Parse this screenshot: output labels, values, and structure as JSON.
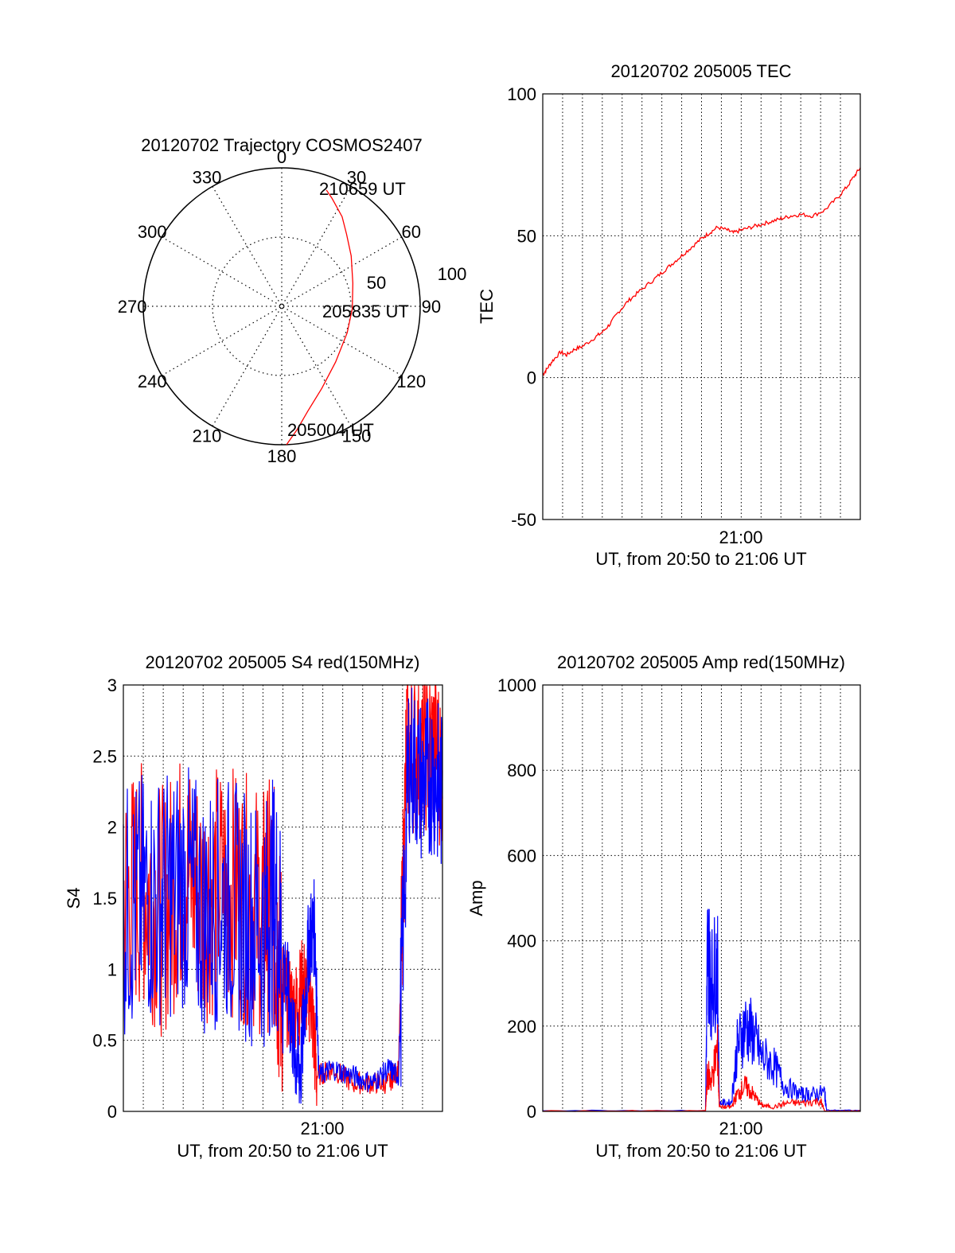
{
  "chart_data": [
    {
      "type": "polar",
      "title": "20120702 Trajectory COSMOS2407",
      "azimuth_labels": [
        "0",
        "30",
        "60",
        "90",
        "120",
        "150",
        "180",
        "210",
        "240",
        "270",
        "300",
        "330"
      ],
      "radial_ticks": [
        50,
        100
      ],
      "radial_max": 100,
      "radial_labels": [
        "50",
        "100"
      ],
      "annotations": {
        "start": "205004 UT",
        "mid": "205835 UT",
        "end": "210659 UT"
      },
      "colors": {
        "trajectory": "#ff0000",
        "axis": "#000000"
      },
      "trajectory": [
        {
          "r": 100,
          "az": 178
        },
        {
          "r": 90,
          "az": 173
        },
        {
          "r": 78,
          "az": 166
        },
        {
          "r": 66,
          "az": 154
        },
        {
          "r": 56,
          "az": 136
        },
        {
          "r": 51,
          "az": 112
        },
        {
          "r": 51,
          "az": 92
        },
        {
          "r": 54,
          "az": 72
        },
        {
          "r": 62,
          "az": 54
        },
        {
          "r": 70,
          "az": 42
        },
        {
          "r": 78,
          "az": 34
        },
        {
          "r": 86,
          "az": 25
        },
        {
          "r": 90,
          "az": 21
        }
      ]
    },
    {
      "type": "line",
      "title": "20120702 205005 TEC",
      "ylabel": "TEC",
      "xlabel": "UT, from 20:50 to 21:06 UT",
      "xlim": [
        0,
        16
      ],
      "ylim": [
        -50,
        100
      ],
      "x_tick_label": "21:00",
      "y_ticks": [
        "100",
        "50",
        "0",
        "-50"
      ],
      "grid": true,
      "colors": {
        "series": "#ff0000"
      },
      "series": [
        {
          "values": [
            [
              0,
              1
            ],
            [
              0.2,
              3
            ],
            [
              0.5,
              6
            ],
            [
              0.9,
              9
            ],
            [
              1.2,
              8
            ],
            [
              1.6,
              10
            ],
            [
              2.0,
              11
            ],
            [
              2.6,
              14
            ],
            [
              3.0,
              16
            ],
            [
              3.4,
              19
            ],
            [
              3.8,
              23
            ],
            [
              4.3,
              27
            ],
            [
              4.8,
              30
            ],
            [
              5.5,
              34
            ],
            [
              6.0,
              37
            ],
            [
              6.5,
              40
            ],
            [
              7.0,
              43
            ],
            [
              7.5,
              46
            ],
            [
              8.0,
              49
            ],
            [
              8.4,
              51
            ],
            [
              8.8,
              53
            ],
            [
              9.3,
              52
            ],
            [
              9.6,
              51
            ],
            [
              10.0,
              52
            ],
            [
              10.5,
              53
            ],
            [
              11.0,
              54
            ],
            [
              11.5,
              55
            ],
            [
              12.0,
              56
            ],
            [
              12.5,
              57
            ],
            [
              13.0,
              57.5
            ],
            [
              13.6,
              57
            ],
            [
              14.2,
              59
            ],
            [
              14.8,
              63
            ],
            [
              15.3,
              67
            ],
            [
              15.7,
              71
            ],
            [
              16,
              74
            ]
          ]
        }
      ]
    },
    {
      "type": "line",
      "title": "20120702 205005 S4 red(150MHz)",
      "ylabel": "S4",
      "xlabel": "UT, from 20:50 to 21:06 UT",
      "xlim": [
        0,
        16
      ],
      "ylim": [
        0,
        3
      ],
      "x_tick_label": "21:00",
      "y_ticks": [
        "3",
        "2.5",
        "2",
        "1.5",
        "1",
        "0.5",
        "0"
      ],
      "grid": true,
      "colors": {
        "red": "#ff0000",
        "blue": "#0000ff"
      },
      "series": [
        {
          "color": "red",
          "values": [
            [
              0,
              1.5
            ],
            [
              1,
              1.6
            ],
            [
              2,
              1.4
            ],
            [
              3,
              1.7
            ],
            [
              4,
              1.5
            ],
            [
              5,
              1.6
            ],
            [
              6,
              1.5
            ],
            [
              7,
              1.4
            ],
            [
              7.5,
              1.5
            ],
            [
              7.8,
              1.0
            ],
            [
              8.2,
              0.8
            ],
            [
              8.6,
              0.7
            ],
            [
              9.0,
              0.9
            ],
            [
              9.4,
              0.8
            ],
            [
              9.7,
              0.25
            ],
            [
              10.5,
              0.3
            ],
            [
              11.5,
              0.2
            ],
            [
              12.5,
              0.2
            ],
            [
              13.3,
              0.2
            ],
            [
              13.8,
              0.3
            ],
            [
              14.2,
              2.6
            ],
            [
              14.8,
              2.5
            ],
            [
              15.5,
              2.6
            ],
            [
              16,
              2.4
            ]
          ]
        },
        {
          "color": "blue",
          "values": [
            [
              0,
              1.4
            ],
            [
              1,
              1.5
            ],
            [
              2,
              1.5
            ],
            [
              3,
              1.6
            ],
            [
              4,
              1.4
            ],
            [
              5,
              1.5
            ],
            [
              6,
              1.4
            ],
            [
              7,
              1.3
            ],
            [
              7.6,
              1.5
            ],
            [
              8.2,
              0.9
            ],
            [
              8.6,
              0.4
            ],
            [
              8.9,
              0.3
            ],
            [
              9.3,
              1.2
            ],
            [
              9.6,
              1.3
            ],
            [
              9.8,
              0.25
            ],
            [
              10.5,
              0.3
            ],
            [
              11.5,
              0.25
            ],
            [
              12.5,
              0.2
            ],
            [
              13.3,
              0.3
            ],
            [
              13.8,
              0.25
            ],
            [
              14.3,
              2.5
            ],
            [
              15.0,
              2.3
            ],
            [
              15.5,
              2.4
            ],
            [
              16,
              2.2
            ]
          ]
        }
      ]
    },
    {
      "type": "line",
      "title": "20120702 205005 Amp red(150MHz)",
      "ylabel": "Amp",
      "xlabel": "UT, from 20:50 to 21:06 UT",
      "xlim": [
        0,
        16
      ],
      "ylim": [
        0,
        1000
      ],
      "x_tick_label": "21:00",
      "y_ticks": [
        "1000",
        "800",
        "600",
        "400",
        "200",
        "0"
      ],
      "grid": true,
      "colors": {
        "red": "#ff0000",
        "blue": "#0000ff"
      },
      "series": [
        {
          "color": "blue",
          "values": [
            [
              0,
              2
            ],
            [
              8.2,
              2
            ],
            [
              8.3,
              380
            ],
            [
              8.5,
              300
            ],
            [
              8.8,
              350
            ],
            [
              8.9,
              20
            ],
            [
              9.5,
              20
            ],
            [
              9.8,
              150
            ],
            [
              10.2,
              200
            ],
            [
              10.6,
              180
            ],
            [
              11,
              130
            ],
            [
              11.6,
              110
            ],
            [
              12.2,
              60
            ],
            [
              13,
              40
            ],
            [
              13.6,
              40
            ],
            [
              14.2,
              45
            ],
            [
              14.3,
              3
            ],
            [
              16,
              2
            ]
          ]
        },
        {
          "color": "red",
          "values": [
            [
              0,
              1
            ],
            [
              8.2,
              1
            ],
            [
              8.3,
              90
            ],
            [
              8.5,
              70
            ],
            [
              8.8,
              150
            ],
            [
              8.9,
              10
            ],
            [
              9.5,
              10
            ],
            [
              9.8,
              40
            ],
            [
              10.2,
              60
            ],
            [
              10.6,
              40
            ],
            [
              11,
              15
            ],
            [
              11.6,
              10
            ],
            [
              12.4,
              20
            ],
            [
              13.2,
              20
            ],
            [
              14.0,
              25
            ],
            [
              14.2,
              1
            ],
            [
              16,
              1
            ]
          ]
        }
      ]
    }
  ]
}
